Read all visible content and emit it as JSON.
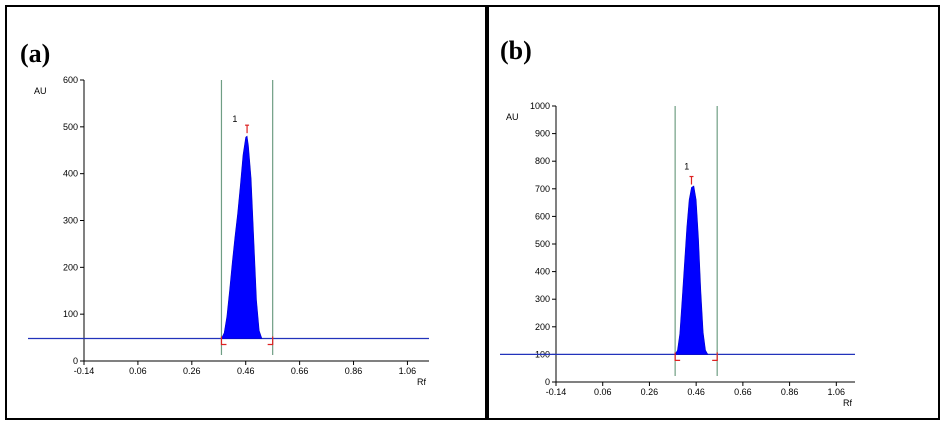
{
  "chart_data": [
    {
      "type": "line",
      "panel_label": "(a)",
      "xlabel": "Rf",
      "ylabel": "AU",
      "xlim": [
        -0.14,
        1.14
      ],
      "ylim": [
        0,
        600
      ],
      "xticks": [
        -0.14,
        0.06,
        0.26,
        0.46,
        0.66,
        0.86,
        1.06
      ],
      "xtick_labels": [
        "-0.14",
        "0.06",
        "0.26",
        "0.46",
        "0.66",
        "0.86",
        "1.06"
      ],
      "yticks": [
        0,
        100,
        200,
        300,
        400,
        500,
        600
      ],
      "ytick_labels": [
        "0",
        "100",
        "200",
        "300",
        "400",
        "500",
        "600"
      ],
      "baseline": 48,
      "integration_bounds": [
        0.37,
        0.56
      ],
      "peak_label": "1",
      "peak_label_pos": [
        0.42,
        510
      ],
      "series": [
        {
          "points": [
            [
              0.37,
              48
            ],
            [
              0.38,
              60
            ],
            [
              0.39,
              95
            ],
            [
              0.4,
              150
            ],
            [
              0.41,
              210
            ],
            [
              0.42,
              265
            ],
            [
              0.43,
              315
            ],
            [
              0.44,
              375
            ],
            [
              0.45,
              440
            ],
            [
              0.46,
              478
            ],
            [
              0.465,
              480
            ],
            [
              0.47,
              460
            ],
            [
              0.48,
              390
            ],
            [
              0.49,
              260
            ],
            [
              0.5,
              130
            ],
            [
              0.51,
              65
            ],
            [
              0.52,
              48
            ]
          ]
        }
      ],
      "apex_marker": [
        0.465,
        495
      ]
    },
    {
      "type": "line",
      "panel_label": "(b)",
      "xlabel": "Rf",
      "ylabel": "AU",
      "xlim": [
        -0.14,
        1.14
      ],
      "ylim": [
        0,
        1000
      ],
      "xticks": [
        -0.14,
        0.06,
        0.26,
        0.46,
        0.66,
        0.86,
        1.06
      ],
      "xtick_labels": [
        "-0.14",
        "0.06",
        "0.26",
        "0.46",
        "0.66",
        "0.86",
        "1.06"
      ],
      "yticks": [
        0,
        100,
        200,
        300,
        400,
        500,
        600,
        700,
        800,
        900,
        1000
      ],
      "ytick_labels": [
        "0",
        "100",
        "200",
        "300",
        "400",
        "500",
        "600",
        "700",
        "800",
        "900",
        "1000"
      ],
      "baseline": 100,
      "integration_bounds": [
        0.37,
        0.55
      ],
      "peak_label": "1",
      "peak_label_pos": [
        0.42,
        770
      ],
      "series": [
        {
          "points": [
            [
              0.37,
              100
            ],
            [
              0.38,
              115
            ],
            [
              0.39,
              175
            ],
            [
              0.4,
              300
            ],
            [
              0.41,
              430
            ],
            [
              0.42,
              560
            ],
            [
              0.43,
              660
            ],
            [
              0.44,
              705
            ],
            [
              0.45,
              710
            ],
            [
              0.46,
              660
            ],
            [
              0.47,
              520
            ],
            [
              0.48,
              330
            ],
            [
              0.49,
              180
            ],
            [
              0.5,
              115
            ],
            [
              0.51,
              100
            ]
          ]
        }
      ],
      "apex_marker": [
        0.44,
        730
      ]
    }
  ]
}
